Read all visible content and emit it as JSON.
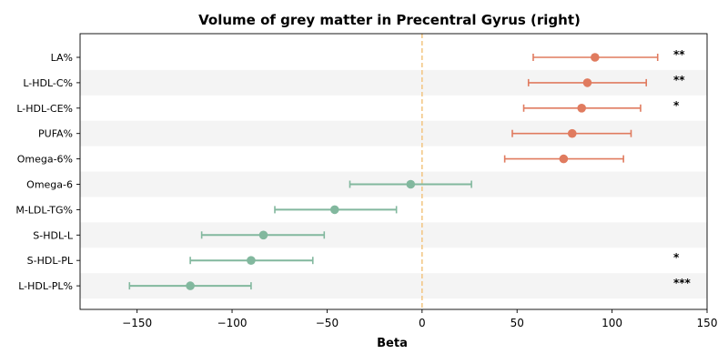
{
  "chart_data": {
    "type": "forest",
    "title": "Volume of grey matter in Precentral Gyrus (right)",
    "xlabel": "Beta",
    "ylabel": "",
    "xlim": [
      -180,
      150
    ],
    "xticks": [
      -150,
      -100,
      -50,
      0,
      50,
      100,
      150
    ],
    "xtick_labels": [
      "−150",
      "−100",
      "−50",
      "0",
      "50",
      "100",
      "150"
    ],
    "reference_line": 0,
    "categories": [
      "LA%",
      "L-HDL-C%",
      "L-HDL-CE%",
      "PUFA%",
      "Omega-6%",
      "Omega-6",
      "M-LDL-TG%",
      "S-HDL-L",
      "S-HDL-PL",
      "L-HDL-PL%"
    ],
    "beta": [
      91,
      87,
      84,
      79,
      74.5,
      -6,
      -46,
      -83.5,
      -90,
      -122
    ],
    "ci_low": [
      58.5,
      56,
      53.5,
      47.5,
      43.5,
      -38,
      -77.5,
      -116,
      -122,
      -154
    ],
    "ci_high": [
      124,
      118,
      115,
      110,
      106,
      26,
      -13.5,
      -51.5,
      -57.5,
      -90
    ],
    "significance": [
      "**",
      "**",
      "*",
      "",
      "",
      "",
      "",
      "",
      "*",
      "***"
    ],
    "colors": {
      "positive": "#e07b5f",
      "negative": "#82b89e",
      "reference": "#f2c47f",
      "band": "#f4f4f4"
    }
  }
}
